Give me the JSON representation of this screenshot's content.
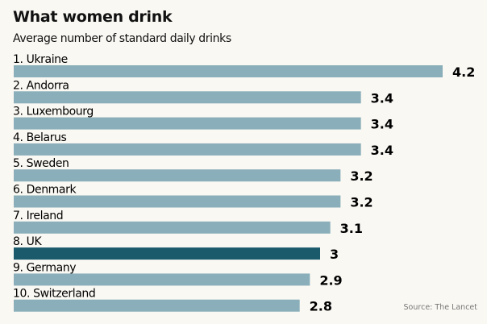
{
  "chart_data": {
    "type": "bar",
    "orientation": "horizontal",
    "title": "What women drink",
    "subtitle": "Average number of standard daily drinks",
    "categories": [
      "1. Ukraine",
      "2. Andorra",
      "3. Luxembourg",
      "4. Belarus",
      "5. Sweden",
      "6. Denmark",
      "7. Ireland",
      "8. UK",
      "9. Germany",
      "10. Switzerland"
    ],
    "values": [
      4.2,
      3.4,
      3.4,
      3.4,
      3.2,
      3.2,
      3.1,
      3,
      2.9,
      2.8
    ],
    "value_labels": [
      "4.2",
      "3.4",
      "3.4",
      "3.4",
      "3.2",
      "3.2",
      "3.1",
      "3",
      "2.9",
      "2.8"
    ],
    "highlight": "8. UK",
    "xlim": [
      0,
      4.2
    ],
    "grid": false,
    "source": "Source: The Lancet",
    "colors": {
      "bar": "#8aafba",
      "highlight": "#1a5a6b",
      "background": "#faf8f3"
    }
  }
}
